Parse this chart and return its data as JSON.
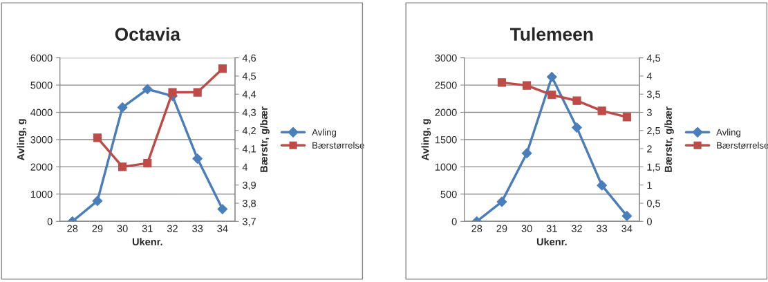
{
  "chart_data": [
    {
      "type": "line",
      "title": "Octavia",
      "xlabel": "Ukenr.",
      "ylabel": "Avling, g",
      "y2label": "Bærstr, g/bær",
      "categories": [
        "28",
        "29",
        "30",
        "31",
        "32",
        "33",
        "34"
      ],
      "series": [
        {
          "name": "Avling",
          "color": "#4a7ebb",
          "marker": "diamond",
          "values": [
            0,
            750,
            4180,
            4850,
            4600,
            2300,
            450
          ]
        },
        {
          "name": "Bærstørrelse",
          "color": "#be4b48",
          "marker": "square",
          "axis": "y2",
          "values": [
            null,
            4.16,
            4.0,
            4.02,
            4.41,
            4.41,
            4.54
          ]
        }
      ],
      "ylim": [
        0,
        6000
      ],
      "yticks": [
        0,
        1000,
        2000,
        3000,
        4000,
        5000,
        6000
      ],
      "y2lim": [
        3.7,
        4.6
      ],
      "y2ticks": [
        {
          "value": 3.7,
          "label": "3,7"
        },
        {
          "value": 3.8,
          "label": "3,8"
        },
        {
          "value": 3.9,
          "label": "3,9"
        },
        4,
        {
          "value": 4.1,
          "label": "4,1"
        },
        {
          "value": 4.2,
          "label": "4,2"
        },
        {
          "value": 4.3,
          "label": "4,3"
        },
        {
          "value": 4.4,
          "label": "4,4"
        },
        {
          "value": 4.5,
          "label": "4,5"
        },
        {
          "value": 4.6,
          "label": "4,6"
        }
      ],
      "grid": "y",
      "legend": "right",
      "line_style": "solid"
    },
    {
      "type": "line",
      "title": "Tulemeen",
      "xlabel": "Ukenr.",
      "ylabel": "Avling, g",
      "y2label": "Bærstr, g/bær",
      "categories": [
        "28",
        "29",
        "30",
        "31",
        "32",
        "33",
        "34"
      ],
      "series": [
        {
          "name": "Avling",
          "color": "#4a7ebb",
          "marker": "diamond",
          "values": [
            0,
            360,
            1250,
            2650,
            1720,
            660,
            100
          ]
        },
        {
          "name": "Bærstørrelse",
          "color": "#be4b48",
          "marker": "square",
          "axis": "y2",
          "values": [
            null,
            3.82,
            3.74,
            3.48,
            3.32,
            3.04,
            2.87
          ]
        }
      ],
      "ylim": [
        0,
        3000
      ],
      "yticks": [
        0,
        500,
        1000,
        1500,
        2000,
        2500,
        3000
      ],
      "y2lim": [
        0,
        4.5
      ],
      "y2ticks": [
        0,
        {
          "value": 0.5,
          "label": "0,5"
        },
        1,
        {
          "value": 1.5,
          "label": "1,5"
        },
        2,
        {
          "value": 2.5,
          "label": "2,5"
        },
        3,
        {
          "value": 3.5,
          "label": "3,5"
        },
        4,
        {
          "value": 4.5,
          "label": "4,5"
        }
      ],
      "grid": "y",
      "legend": "right",
      "line_style": "solid"
    }
  ]
}
